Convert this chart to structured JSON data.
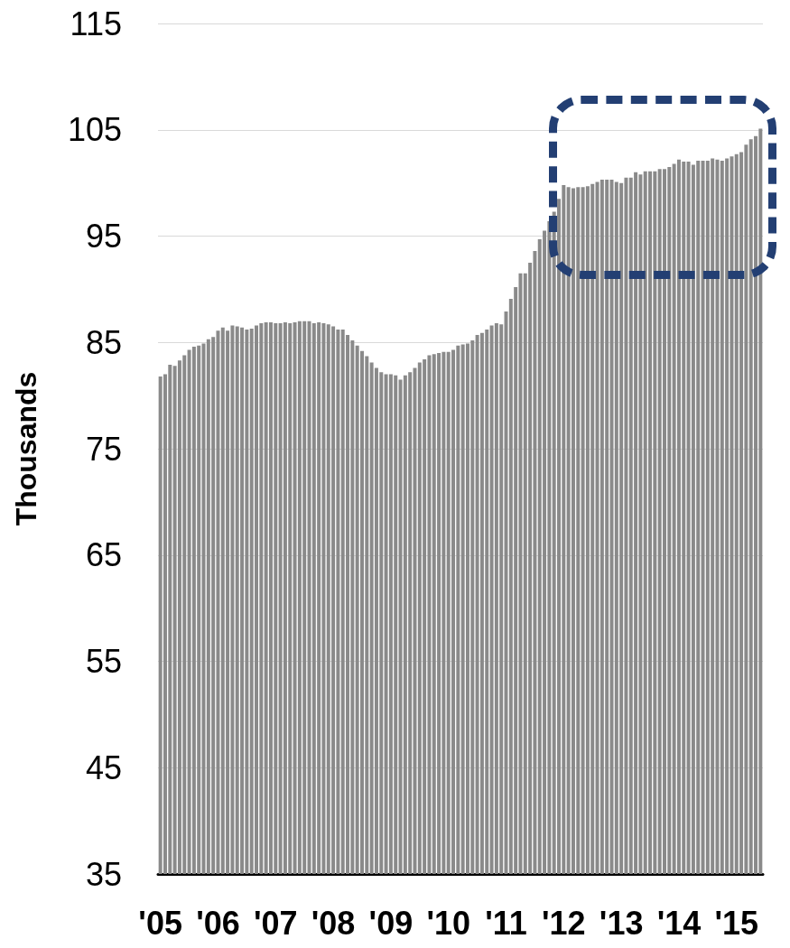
{
  "chart_data": {
    "type": "bar",
    "ylabel": "Thousands",
    "categories": [
      "'05",
      null,
      null,
      null,
      null,
      null,
      null,
      null,
      null,
      null,
      null,
      null,
      "'06",
      null,
      null,
      null,
      null,
      null,
      null,
      null,
      null,
      null,
      null,
      null,
      "'07",
      null,
      null,
      null,
      null,
      null,
      null,
      null,
      null,
      null,
      null,
      null,
      "'08",
      null,
      null,
      null,
      null,
      null,
      null,
      null,
      null,
      null,
      null,
      null,
      "'09",
      null,
      null,
      null,
      null,
      null,
      null,
      null,
      null,
      null,
      null,
      null,
      "'10",
      null,
      null,
      null,
      null,
      null,
      null,
      null,
      null,
      null,
      null,
      null,
      "'11",
      null,
      null,
      null,
      null,
      null,
      null,
      null,
      null,
      null,
      null,
      null,
      "'12",
      null,
      null,
      null,
      null,
      null,
      null,
      null,
      null,
      null,
      null,
      null,
      "'13",
      null,
      null,
      null,
      null,
      null,
      null,
      null,
      null,
      null,
      null,
      null,
      "'14",
      null,
      null,
      null,
      null,
      null,
      null,
      null,
      null,
      null,
      null,
      null,
      "'15",
      null,
      null,
      null,
      null,
      null
    ],
    "values": [
      81.8,
      82.0,
      82.9,
      82.8,
      83.3,
      83.8,
      84.3,
      84.6,
      84.7,
      84.9,
      85.3,
      85.5,
      86.1,
      86.4,
      86.1,
      86.6,
      86.5,
      86.4,
      86.2,
      86.3,
      86.6,
      86.8,
      86.9,
      86.9,
      86.8,
      86.8,
      86.9,
      86.8,
      86.9,
      87.0,
      87.0,
      87.0,
      86.8,
      86.9,
      86.8,
      86.7,
      86.5,
      86.2,
      86.2,
      85.7,
      85.2,
      84.7,
      84.2,
      83.7,
      83.1,
      82.6,
      82.2,
      82.0,
      82.0,
      81.9,
      81.5,
      81.9,
      82.2,
      82.6,
      83.1,
      83.4,
      83.8,
      83.9,
      84.0,
      84.1,
      84.1,
      84.3,
      84.7,
      84.8,
      84.9,
      85.2,
      85.7,
      85.9,
      86.2,
      86.6,
      86.8,
      86.7,
      87.9,
      89.1,
      90.2,
      91.5,
      91.5,
      92.5,
      93.6,
      94.7,
      95.5,
      96.4,
      97.3,
      98.5,
      99.8,
      99.6,
      99.5,
      99.6,
      99.6,
      99.7,
      99.9,
      100.1,
      100.3,
      100.3,
      100.3,
      100.1,
      100.0,
      100.5,
      100.5,
      101.0,
      100.8,
      101.1,
      101.1,
      101.1,
      101.3,
      101.3,
      101.5,
      101.8,
      102.2,
      102.0,
      102.0,
      101.7,
      102.1,
      102.1,
      102.1,
      102.3,
      102.2,
      102.1,
      102.3,
      102.5,
      102.7,
      102.9,
      103.6,
      104.1,
      104.4,
      105.1
    ],
    "color": "#8a8a8a",
    "ylim": [
      35,
      115
    ],
    "yticks": [
      35,
      45,
      55,
      65,
      75,
      85,
      95,
      105,
      115
    ],
    "grid": "y"
  }
}
